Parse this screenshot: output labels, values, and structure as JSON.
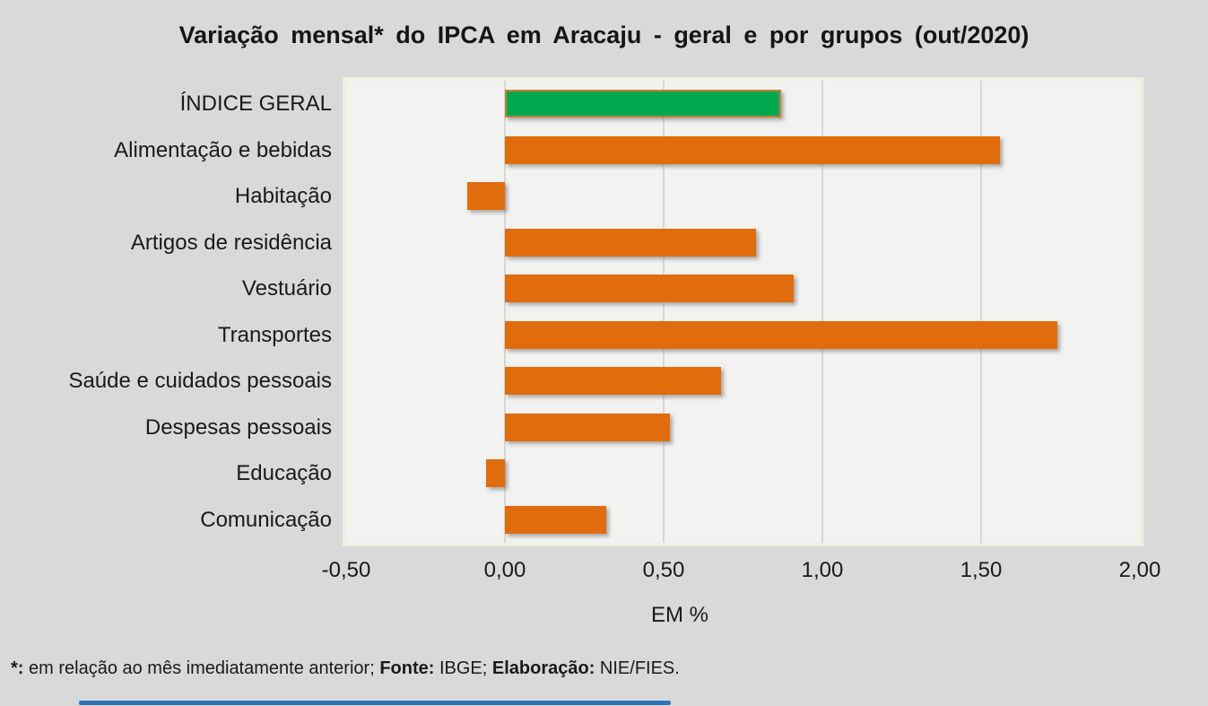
{
  "title": "Variação mensal* do IPCA em Aracaju - geral e por grupos (out/2020)",
  "footnote": {
    "asterisk_label": "*:",
    "part1": " em relação ao mês imediatamente anterior; ",
    "fonte_label": "Fonte:",
    "part2": " IBGE; ",
    "elaboracao_label": "Elaboração:",
    "part3": " NIE/FIES."
  },
  "chart_data": {
    "type": "bar",
    "orientation": "horizontal",
    "title": "Variação mensal* do IPCA em Aracaju - geral e por grupos (out/2020)",
    "xlabel": "EM %",
    "xlim": [
      -0.5,
      2.0
    ],
    "x_tick_labels": [
      "-0,50",
      "0,00",
      "0,50",
      "1,00",
      "1,50",
      "2,00"
    ],
    "x_tick_values": [
      -0.5,
      0.0,
      0.5,
      1.0,
      1.5,
      2.0
    ],
    "grid": "vertical",
    "legend": "none",
    "categories": [
      "ÍNDICE GERAL",
      "Alimentação e bebidas",
      "Habitação",
      "Artigos de residência",
      "Vestuário",
      "Transportes",
      "Saúde e cuidados pessoais",
      "Despesas pessoais",
      "Educação",
      "Comunicação"
    ],
    "values": [
      0.87,
      1.56,
      -0.12,
      0.79,
      0.91,
      1.74,
      0.68,
      0.52,
      -0.06,
      0.32
    ],
    "highlight_category": "ÍNDICE GERAL",
    "colors": {
      "general_bar": "#00a94f",
      "general_bar_border": "#c5802f",
      "group_bar": "#e16c0c",
      "plot_background": "#f2f2f1",
      "panel_border": "#eef0e2",
      "page_background": "#d9d9d9",
      "gridline": "#d7d7d5",
      "bottom_strip": "#2e75b6"
    }
  }
}
